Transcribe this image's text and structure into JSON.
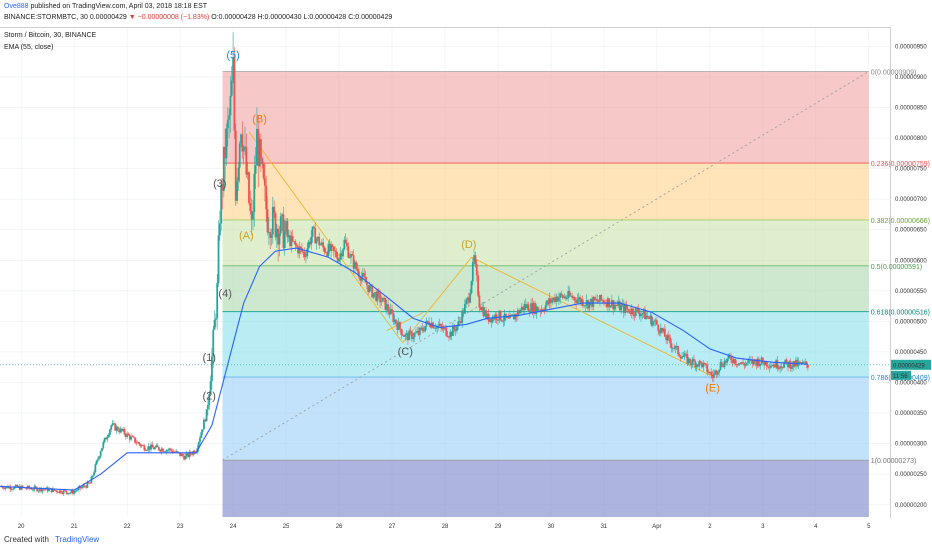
{
  "header": {
    "author": "Ove888",
    "published": "published on TradingView.com, April 03, 2018 18:18 EST",
    "symbol": "BINANCE:STORMBTC, 30",
    "last": "0.00000429",
    "change": "▼ −0.00000008 (−1.83%)",
    "ohlc": "O:0.00000428 H:0.00000430 L:0.00000428 C:0.00000429",
    "pane_title": "Storm / Bitcoin, 30, BINANCE",
    "indicator": "EMA (55, close)"
  },
  "footer": {
    "created_with": "Created with",
    "brand": "TradingView"
  },
  "colors": {
    "up": "#26a69a",
    "down": "#ef5350",
    "ema": "#2962ff",
    "abc": "#f0b429",
    "price_tag": "#26a69a",
    "grid": "#eceff2"
  },
  "chart_data": {
    "type": "candlestick",
    "title": "Storm / Bitcoin, 30, BINANCE",
    "y_ticks": [
      "0.00000950",
      "0.00000900",
      "0.00000850",
      "0.00000800",
      "0.00000750",
      "0.00000700",
      "0.00000650",
      "0.00000600",
      "0.00000550",
      "0.00000500",
      "0.00000450",
      "0.00000400",
      "0.00000350",
      "0.00000300",
      "0.00000250",
      "0.00000200"
    ],
    "y_range": [
      1.8e-06,
      9.8e-06
    ],
    "x_ticks": [
      "20",
      "21",
      "22",
      "23",
      "24",
      "25",
      "26",
      "27",
      "28",
      "29",
      "30",
      "31",
      "Apr",
      "2",
      "3",
      "4",
      "5"
    ],
    "x_range_days": [
      19.6,
      36.4
    ],
    "price_path": [
      [
        19.6,
        2.3
      ],
      [
        20.5,
        2.25
      ],
      [
        20.95,
        2.2
      ],
      [
        21.3,
        2.35
      ],
      [
        21.5,
        2.9
      ],
      [
        21.7,
        3.3
      ],
      [
        21.9,
        3.2
      ],
      [
        22.3,
        2.95
      ],
      [
        22.8,
        2.9
      ],
      [
        23.1,
        2.78
      ],
      [
        23.3,
        2.9
      ],
      [
        23.5,
        3.5
      ],
      [
        23.6,
        4.4
      ],
      [
        23.7,
        5.5
      ],
      [
        23.75,
        6.8
      ],
      [
        23.85,
        7.8
      ],
      [
        23.95,
        8.5
      ],
      [
        24.0,
        9.09
      ],
      [
        24.05,
        7.2
      ],
      [
        24.15,
        8.3
      ],
      [
        24.25,
        7.4
      ],
      [
        24.35,
        6.5
      ],
      [
        24.45,
        8.0
      ],
      [
        24.55,
        7.3
      ],
      [
        24.65,
        6.7
      ],
      [
        24.8,
        6.6
      ],
      [
        24.95,
        6.45
      ],
      [
        25.15,
        6.25
      ],
      [
        25.35,
        6.1
      ],
      [
        25.5,
        6.45
      ],
      [
        25.7,
        6.2
      ],
      [
        25.85,
        6.15
      ],
      [
        26.0,
        6.05
      ],
      [
        26.1,
        6.3
      ],
      [
        26.3,
        5.9
      ],
      [
        26.6,
        5.5
      ],
      [
        26.85,
        5.3
      ],
      [
        27.1,
        4.95
      ],
      [
        27.25,
        4.75
      ],
      [
        27.5,
        4.8
      ],
      [
        27.7,
        5.0
      ],
      [
        27.9,
        4.9
      ],
      [
        28.1,
        4.8
      ],
      [
        28.25,
        4.95
      ],
      [
        28.45,
        5.4
      ],
      [
        28.55,
        6.03
      ],
      [
        28.65,
        5.3
      ],
      [
        28.8,
        5.05
      ],
      [
        29.0,
        5.1
      ],
      [
        29.2,
        5.0
      ],
      [
        29.5,
        5.25
      ],
      [
        29.8,
        5.2
      ],
      [
        30.1,
        5.4
      ],
      [
        30.4,
        5.4
      ],
      [
        30.7,
        5.3
      ],
      [
        31.0,
        5.35
      ],
      [
        31.4,
        5.2
      ],
      [
        31.7,
        5.15
      ],
      [
        32.0,
        4.95
      ],
      [
        32.2,
        4.7
      ],
      [
        32.4,
        4.5
      ],
      [
        32.6,
        4.35
      ],
      [
        32.85,
        4.3
      ],
      [
        33.05,
        4.1
      ],
      [
        33.2,
        4.3
      ],
      [
        33.4,
        4.4
      ],
      [
        33.6,
        4.3
      ],
      [
        33.9,
        4.35
      ],
      [
        34.2,
        4.3
      ],
      [
        34.5,
        4.3
      ],
      [
        34.85,
        4.29
      ]
    ],
    "ema_path": [
      [
        19.6,
        2.3
      ],
      [
        21.0,
        2.24
      ],
      [
        21.5,
        2.5
      ],
      [
        22.0,
        2.85
      ],
      [
        22.8,
        2.85
      ],
      [
        23.3,
        2.85
      ],
      [
        23.6,
        3.3
      ],
      [
        23.9,
        4.3
      ],
      [
        24.2,
        5.3
      ],
      [
        24.5,
        5.9
      ],
      [
        24.8,
        6.15
      ],
      [
        25.2,
        6.2
      ],
      [
        25.8,
        6.05
      ],
      [
        26.3,
        5.8
      ],
      [
        26.9,
        5.4
      ],
      [
        27.4,
        5.05
      ],
      [
        27.9,
        4.9
      ],
      [
        28.4,
        4.95
      ],
      [
        28.8,
        5.05
      ],
      [
        29.4,
        5.1
      ],
      [
        30.0,
        5.2
      ],
      [
        30.6,
        5.3
      ],
      [
        31.3,
        5.3
      ],
      [
        31.9,
        5.15
      ],
      [
        32.5,
        4.85
      ],
      [
        33.0,
        4.55
      ],
      [
        33.5,
        4.4
      ],
      [
        34.2,
        4.33
      ],
      [
        34.85,
        4.3
      ]
    ],
    "fib_levels": [
      {
        "ratio": 0,
        "label": "0(0.00000909)",
        "price": 9.09,
        "band_color": "#ef9a9a",
        "line_color": "#b0b0b0",
        "text_color": "#888888"
      },
      {
        "ratio": 0.236,
        "label": "0.236(0.00000759)",
        "price": 7.59,
        "band_color": "#ffcc80",
        "line_color": "#ef5350",
        "text_color": "#ef5350"
      },
      {
        "ratio": 0.382,
        "label": "0.382(0.00000666)",
        "price": 6.66,
        "band_color": "#c5e1a5",
        "line_color": "#9ccc65",
        "text_color": "#689f38"
      },
      {
        "ratio": 0.5,
        "label": "0.5(0.00000591)",
        "price": 5.91,
        "band_color": "#a5d6a7",
        "line_color": "#66bb6a",
        "text_color": "#43a047"
      },
      {
        "ratio": 0.618,
        "label": "0.618(0.00000516)",
        "price": 5.16,
        "band_color": "#80deea",
        "line_color": "#26a69a",
        "text_color": "#00897b"
      },
      {
        "ratio": 0.786,
        "label": "0.786(0.00000409)",
        "price": 4.09,
        "band_color": "#90caf9",
        "line_color": "#64b5f6",
        "text_color": "#1e88e5"
      },
      {
        "ratio": 1,
        "label": "1(0.00000273)",
        "price": 2.73,
        "band_color": "#bdbdbd",
        "line_color": "#9e9e9e",
        "text_color": "#757575"
      }
    ],
    "fib_bottom_band_color": "#5c6bc0",
    "fib_start_day": 23.8,
    "fib_end_day": 36.0,
    "wave_labels": [
      {
        "text": "(1)",
        "day": 23.55,
        "price": 4.35,
        "color": "#555555"
      },
      {
        "text": "(2)",
        "day": 23.55,
        "price": 3.72,
        "color": "#555555"
      },
      {
        "text": "(3)",
        "day": 23.75,
        "price": 7.2,
        "color": "#555555"
      },
      {
        "text": "(4)",
        "day": 23.85,
        "price": 5.4,
        "color": "#555555"
      },
      {
        "text": "(5)",
        "day": 24.0,
        "price": 9.3,
        "color": "#1e88e5"
      },
      {
        "text": "(A)",
        "day": 24.25,
        "price": 6.35,
        "color": "#c9a227"
      },
      {
        "text": "(B)",
        "day": 24.5,
        "price": 8.25,
        "color": "#f57c00"
      },
      {
        "text": "(C)",
        "day": 27.25,
        "price": 4.45,
        "color": "#555555"
      },
      {
        "text": "(D)",
        "day": 28.45,
        "price": 6.2,
        "color": "#c9a227"
      },
      {
        "text": "(E)",
        "day": 33.05,
        "price": 3.85,
        "color": "#f57c00"
      }
    ],
    "abcde_path": [
      [
        24.3,
        8.1
      ],
      [
        27.2,
        4.65
      ],
      [
        28.5,
        6.05
      ],
      [
        33.05,
        4.1
      ]
    ],
    "abcde_extra": [
      [
        26.9,
        4.85
      ],
      [
        27.6,
        5.15
      ]
    ],
    "trend_dotted": [
      [
        23.8,
        2.73
      ],
      [
        36.0,
        9.09
      ]
    ],
    "current_price": {
      "value": "0.00000429",
      "price": 4.29,
      "time_left": "11:56"
    }
  }
}
